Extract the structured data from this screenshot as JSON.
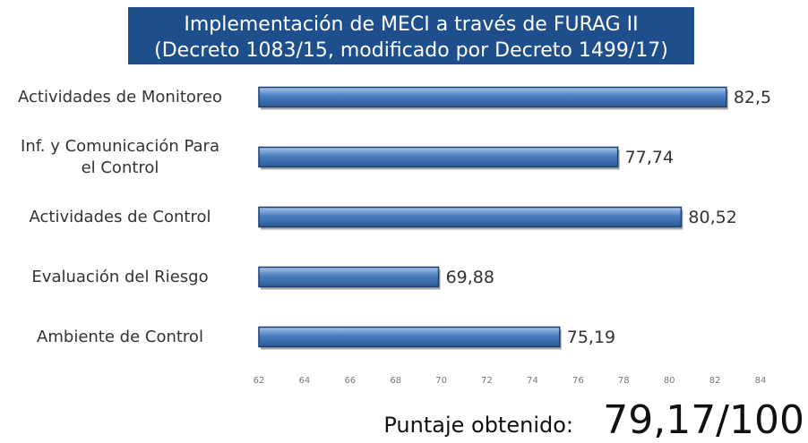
{
  "chart_data": {
    "type": "bar",
    "orientation": "horizontal",
    "title": [
      "Implementación de MECI a través de FURAG II",
      "(Decreto 1083/15, modificado por Decreto 1499/17)"
    ],
    "categories": [
      "Actividades de Monitoreo",
      "Inf. y Comunicación Para\nel Control",
      "Actividades de Control",
      "Evaluación del Riesgo",
      "Ambiente de Control"
    ],
    "values": [
      82.5,
      77.74,
      80.52,
      69.88,
      75.19
    ],
    "value_labels": [
      "82,5",
      "77,74",
      "80,52",
      "69,88",
      "75,19"
    ],
    "color": "#4a7ebf",
    "xlim": [
      62,
      84
    ],
    "xticks": [
      62,
      64,
      66,
      68,
      70,
      72,
      74,
      76,
      78,
      80,
      82,
      84
    ],
    "grid": false,
    "score_label": "Puntaje obtenido:",
    "score": "79,17/100"
  }
}
